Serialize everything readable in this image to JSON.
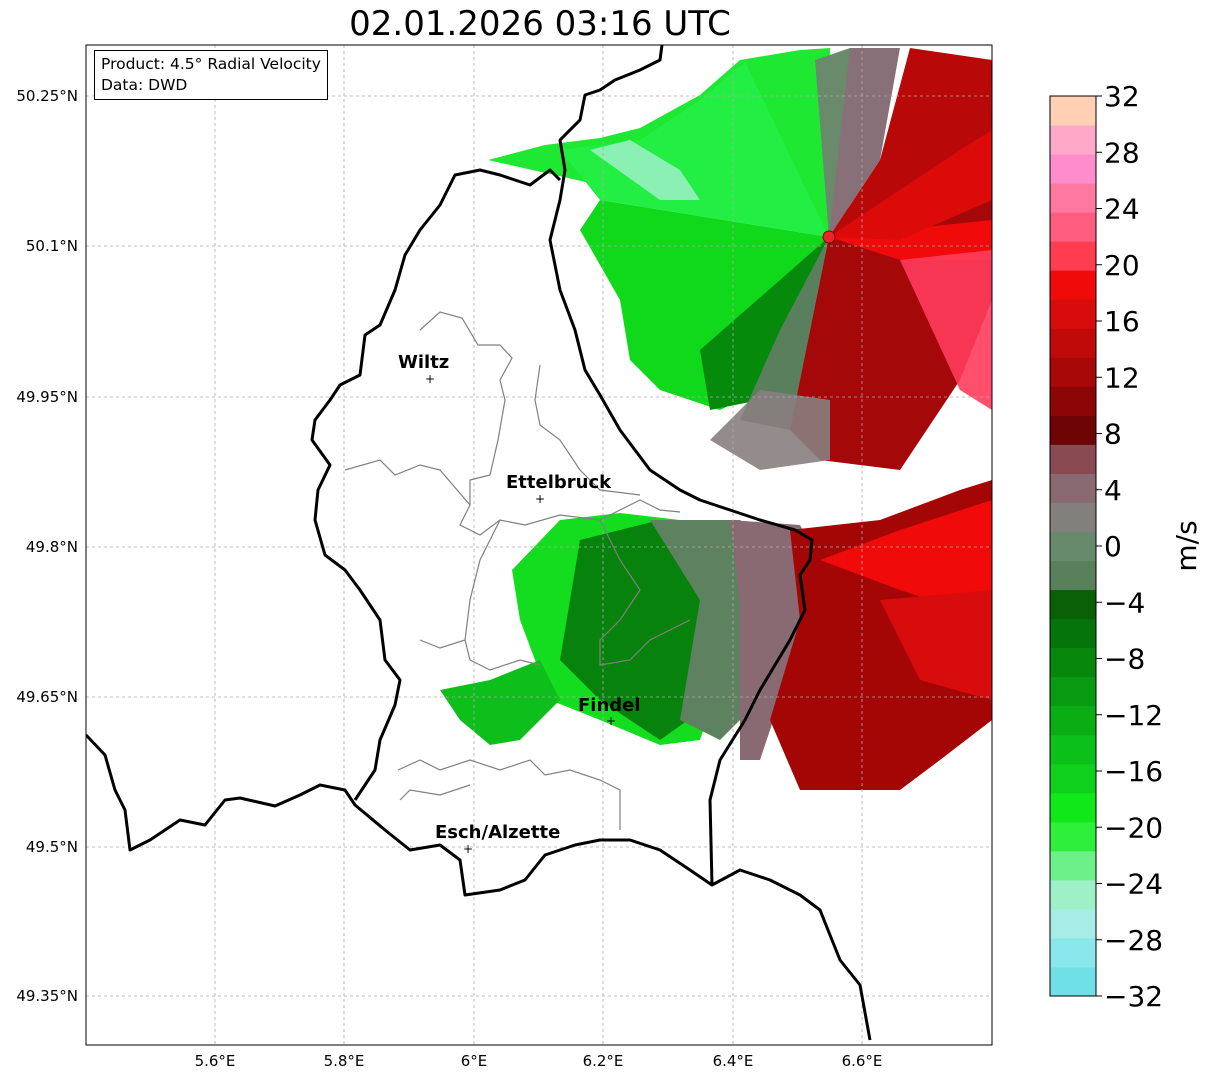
{
  "title": "02.01.2026 03:16 UTC",
  "info": {
    "product": "Product: 4.5° Radial Velocity",
    "data": "Data: DWD"
  },
  "map": {
    "lon_ticks": [
      "5.6°E",
      "5.8°E",
      "6°E",
      "6.2°E",
      "6.4°E",
      "6.6°E"
    ],
    "lat_ticks": [
      "50.25°N",
      "50.1°N",
      "49.95°N",
      "49.8°N",
      "49.65°N",
      "49.5°N",
      "49.35°N"
    ],
    "lon_range": [
      5.4,
      6.8
    ],
    "lat_range": [
      49.3,
      50.3
    ],
    "grid": true,
    "radar_site_color": "#e8262a",
    "cities": [
      {
        "name": "Wiltz",
        "lon": 5.93,
        "lat": 49.97
      },
      {
        "name": "Ettelbruck",
        "lon": 6.1,
        "lat": 49.85
      },
      {
        "name": "Findel",
        "lon": 6.21,
        "lat": 49.63
      },
      {
        "name": "Esch/Alzette",
        "lon": 5.99,
        "lat": 49.5
      }
    ]
  },
  "colorbar": {
    "label": "m/s",
    "ticks": [
      "32",
      "28",
      "24",
      "20",
      "16",
      "12",
      "8",
      "4",
      "0",
      "−4",
      "−8",
      "−12",
      "−16",
      "−20",
      "−24",
      "−28",
      "−32"
    ],
    "range": [
      -32,
      32
    ],
    "colors_bottom_to_top": [
      "#6fe0e6",
      "#8ae8ec",
      "#a8ece8",
      "#9ef0c8",
      "#6cf08a",
      "#2ef03a",
      "#10e81a",
      "#0fd01a",
      "#0cc01a",
      "#0aad14",
      "#089a10",
      "#07880c",
      "#05740a",
      "#0a6006",
      "#58805a",
      "#688a6c",
      "#82807c",
      "#8a6a72",
      "#8a4a52",
      "#6e0404",
      "#8c0606",
      "#a80808",
      "#c00a0a",
      "#d80c0c",
      "#f00a0a",
      "#ff3c50",
      "#ff5c80",
      "#ff78a0",
      "#ff8ccc",
      "#ffa8c8",
      "#ffd0b4"
    ]
  }
}
